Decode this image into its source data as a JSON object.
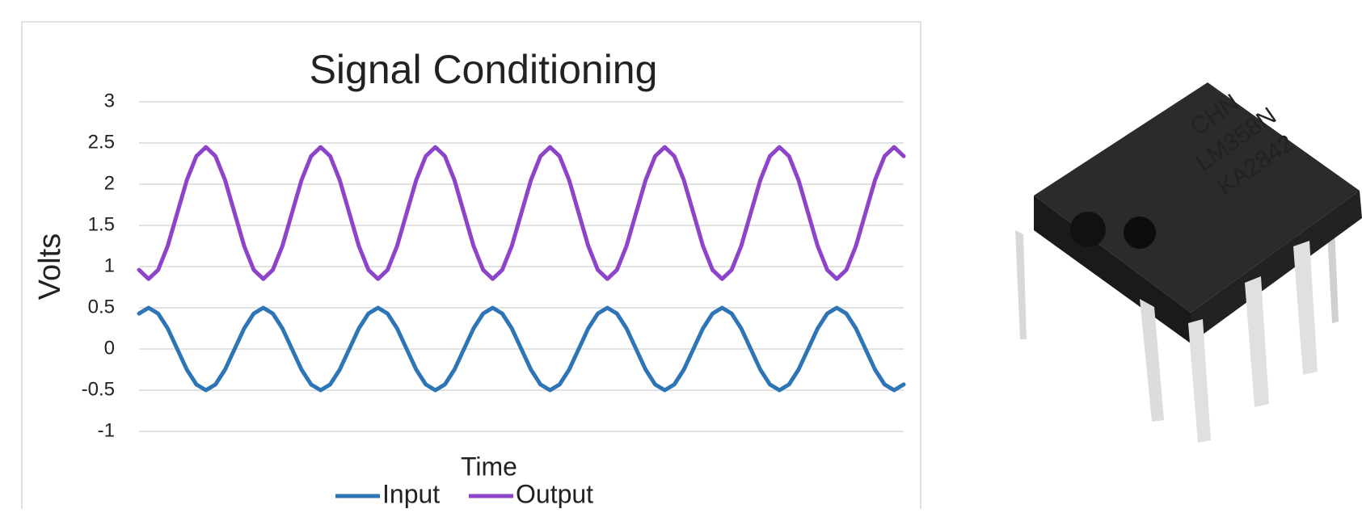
{
  "chart_data": {
    "type": "line",
    "title": "Signal Conditioning",
    "x_label": "Time",
    "y_label": "Volts",
    "ylim": [
      -1,
      3
    ],
    "yticks": [
      -1,
      -0.5,
      0,
      0.5,
      1,
      1.5,
      2,
      2.5,
      3
    ],
    "grid": true,
    "series": [
      {
        "name": "Input",
        "color": "#2e75b6",
        "values": [
          0.43,
          0.5,
          0.43,
          0.25,
          0,
          -0.25,
          -0.43,
          -0.5,
          -0.43,
          -0.25,
          0,
          0.25,
          0.43,
          0.5,
          0.43,
          0.25,
          0,
          -0.25,
          -0.43,
          -0.5,
          -0.43,
          -0.25,
          0,
          0.25,
          0.43,
          0.5,
          0.43,
          0.25,
          0,
          -0.25,
          -0.43,
          -0.5,
          -0.43,
          -0.25,
          0,
          0.25,
          0.43,
          0.5,
          0.43,
          0.25,
          0,
          -0.25,
          -0.43,
          -0.5,
          -0.43,
          -0.25,
          0,
          0.25,
          0.43,
          0.5,
          0.43,
          0.25,
          0,
          -0.25,
          -0.43,
          -0.5,
          -0.43,
          -0.25,
          0,
          0.25,
          0.43,
          0.5,
          0.43,
          0.25,
          0,
          -0.25,
          -0.43,
          -0.5,
          -0.43,
          -0.25,
          0,
          0.25,
          0.43,
          0.5,
          0.43,
          0.25,
          0,
          -0.25,
          -0.43,
          -0.5,
          -0.43
        ]
      },
      {
        "name": "Output",
        "color": "#8e44c9",
        "values": [
          0.96,
          0.85,
          0.96,
          1.25,
          1.65,
          2.05,
          2.34,
          2.45,
          2.34,
          2.05,
          1.65,
          1.25,
          0.96,
          0.85,
          0.96,
          1.25,
          1.65,
          2.05,
          2.34,
          2.45,
          2.34,
          2.05,
          1.65,
          1.25,
          0.96,
          0.85,
          0.96,
          1.25,
          1.65,
          2.05,
          2.34,
          2.45,
          2.34,
          2.05,
          1.65,
          1.25,
          0.96,
          0.85,
          0.96,
          1.25,
          1.65,
          2.05,
          2.34,
          2.45,
          2.34,
          2.05,
          1.65,
          1.25,
          0.96,
          0.85,
          0.96,
          1.25,
          1.65,
          2.05,
          2.34,
          2.45,
          2.34,
          2.05,
          1.65,
          1.25,
          0.96,
          0.85,
          0.96,
          1.25,
          1.65,
          2.05,
          2.34,
          2.45,
          2.34,
          2.05,
          1.65,
          1.25,
          0.96,
          0.85,
          0.96,
          1.25,
          1.65,
          2.05,
          2.34,
          2.45,
          2.34
        ]
      }
    ]
  },
  "chip_label": [
    "CHN",
    "LM358N",
    "KA2842"
  ]
}
